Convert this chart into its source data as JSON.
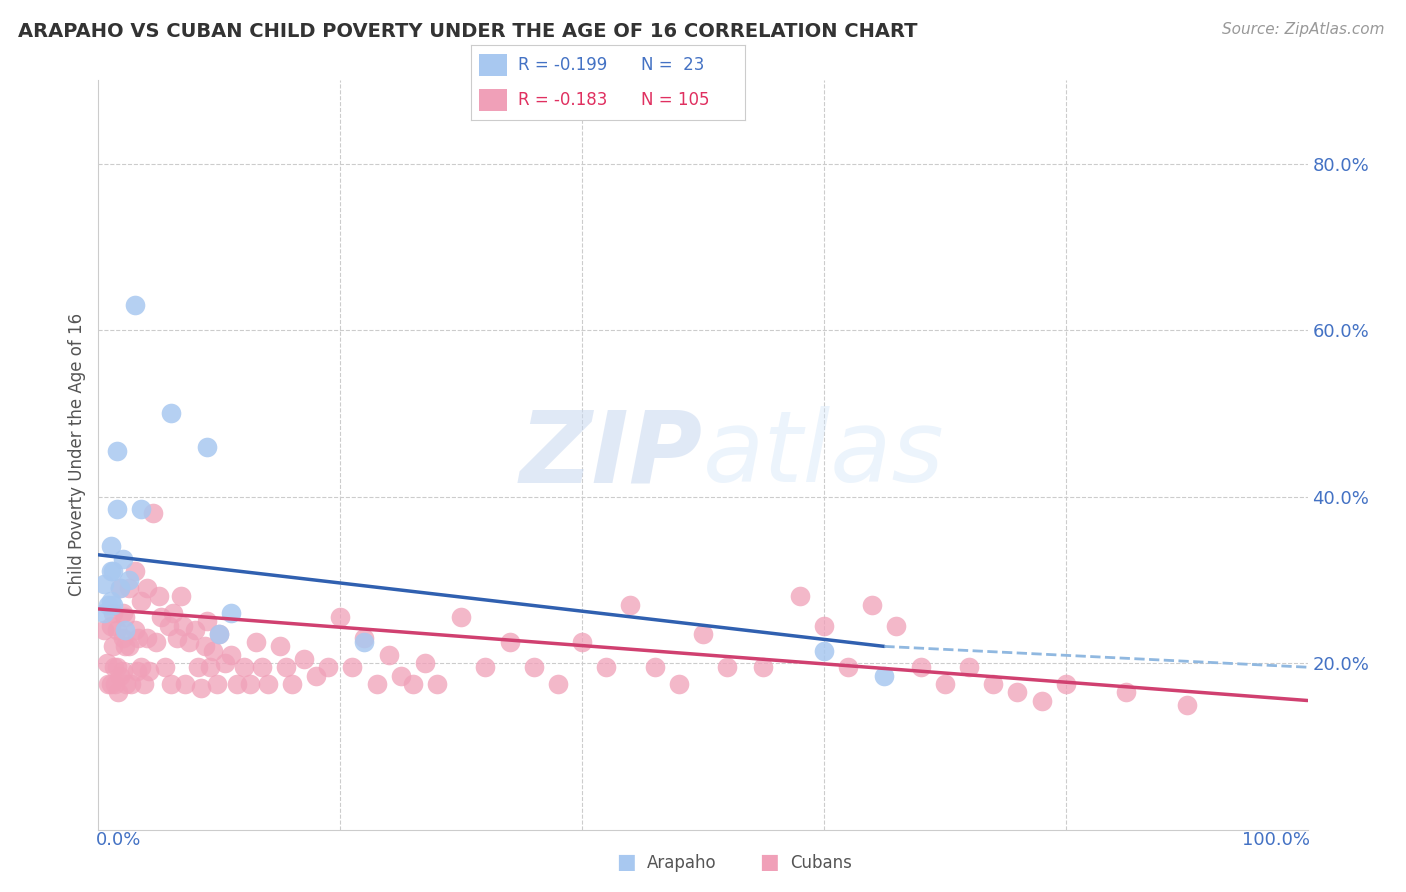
{
  "title": "ARAPAHO VS CUBAN CHILD POVERTY UNDER THE AGE OF 16 CORRELATION CHART",
  "source": "Source: ZipAtlas.com",
  "ylabel": "Child Poverty Under the Age of 16",
  "watermark": "ZIPatlas",
  "arapaho_color": "#a8c8f0",
  "cubans_color": "#f0a0b8",
  "trend_arapaho_color": "#3060b0",
  "trend_cubans_color": "#d04070",
  "trend_arapaho_dash_color": "#90b8e0",
  "yticks": [
    0.0,
    0.2,
    0.4,
    0.6,
    0.8
  ],
  "ytick_labels": [
    "",
    "20.0%",
    "40.0%",
    "60.0%",
    "80.0%"
  ],
  "xlim": [
    0.0,
    1.0
  ],
  "ylim": [
    0.0,
    0.9
  ],
  "arapaho_x": [
    0.005,
    0.005,
    0.008,
    0.01,
    0.01,
    0.01,
    0.012,
    0.012,
    0.015,
    0.015,
    0.018,
    0.02,
    0.022,
    0.025,
    0.03,
    0.035,
    0.06,
    0.09,
    0.1,
    0.11,
    0.22,
    0.6,
    0.65
  ],
  "arapaho_y": [
    0.295,
    0.26,
    0.27,
    0.34,
    0.31,
    0.275,
    0.31,
    0.27,
    0.455,
    0.385,
    0.29,
    0.325,
    0.24,
    0.3,
    0.63,
    0.385,
    0.5,
    0.46,
    0.235,
    0.26,
    0.225,
    0.215,
    0.185
  ],
  "cubans_x": [
    0.005,
    0.007,
    0.008,
    0.01,
    0.01,
    0.012,
    0.012,
    0.013,
    0.014,
    0.015,
    0.015,
    0.016,
    0.018,
    0.018,
    0.02,
    0.02,
    0.02,
    0.022,
    0.022,
    0.023,
    0.025,
    0.025,
    0.027,
    0.03,
    0.03,
    0.032,
    0.033,
    0.035,
    0.035,
    0.038,
    0.04,
    0.04,
    0.042,
    0.045,
    0.048,
    0.05,
    0.052,
    0.055,
    0.058,
    0.06,
    0.062,
    0.065,
    0.068,
    0.07,
    0.072,
    0.075,
    0.08,
    0.082,
    0.085,
    0.088,
    0.09,
    0.092,
    0.095,
    0.098,
    0.1,
    0.105,
    0.11,
    0.115,
    0.12,
    0.125,
    0.13,
    0.135,
    0.14,
    0.15,
    0.155,
    0.16,
    0.17,
    0.18,
    0.19,
    0.2,
    0.21,
    0.22,
    0.23,
    0.24,
    0.25,
    0.26,
    0.27,
    0.28,
    0.3,
    0.32,
    0.34,
    0.36,
    0.38,
    0.4,
    0.42,
    0.44,
    0.46,
    0.48,
    0.5,
    0.52,
    0.55,
    0.58,
    0.6,
    0.62,
    0.64,
    0.66,
    0.68,
    0.7,
    0.72,
    0.74,
    0.76,
    0.78,
    0.8,
    0.85,
    0.9
  ],
  "cubans_y": [
    0.24,
    0.2,
    0.175,
    0.245,
    0.175,
    0.26,
    0.22,
    0.195,
    0.175,
    0.24,
    0.195,
    0.165,
    0.29,
    0.185,
    0.26,
    0.23,
    0.19,
    0.255,
    0.22,
    0.175,
    0.29,
    0.22,
    0.175,
    0.31,
    0.24,
    0.19,
    0.23,
    0.275,
    0.195,
    0.175,
    0.29,
    0.23,
    0.19,
    0.38,
    0.225,
    0.28,
    0.255,
    0.195,
    0.245,
    0.175,
    0.26,
    0.23,
    0.28,
    0.245,
    0.175,
    0.225,
    0.24,
    0.195,
    0.17,
    0.22,
    0.25,
    0.195,
    0.215,
    0.175,
    0.235,
    0.2,
    0.21,
    0.175,
    0.195,
    0.175,
    0.225,
    0.195,
    0.175,
    0.22,
    0.195,
    0.175,
    0.205,
    0.185,
    0.195,
    0.255,
    0.195,
    0.23,
    0.175,
    0.21,
    0.185,
    0.175,
    0.2,
    0.175,
    0.255,
    0.195,
    0.225,
    0.195,
    0.175,
    0.225,
    0.195,
    0.27,
    0.195,
    0.175,
    0.235,
    0.195,
    0.195,
    0.28,
    0.245,
    0.195,
    0.27,
    0.245,
    0.195,
    0.175,
    0.195,
    0.175,
    0.165,
    0.155,
    0.175,
    0.165,
    0.15
  ],
  "trend_arapaho_x0": 0.0,
  "trend_arapaho_y0": 0.33,
  "trend_arapaho_x1": 0.65,
  "trend_arapaho_y1": 0.22,
  "trend_arapaho_dash_x0": 0.65,
  "trend_arapaho_dash_y0": 0.22,
  "trend_arapaho_dash_x1": 1.0,
  "trend_arapaho_dash_y1": 0.195,
  "trend_cubans_x0": 0.0,
  "trend_cubans_y0": 0.265,
  "trend_cubans_x1": 1.0,
  "trend_cubans_y1": 0.155
}
